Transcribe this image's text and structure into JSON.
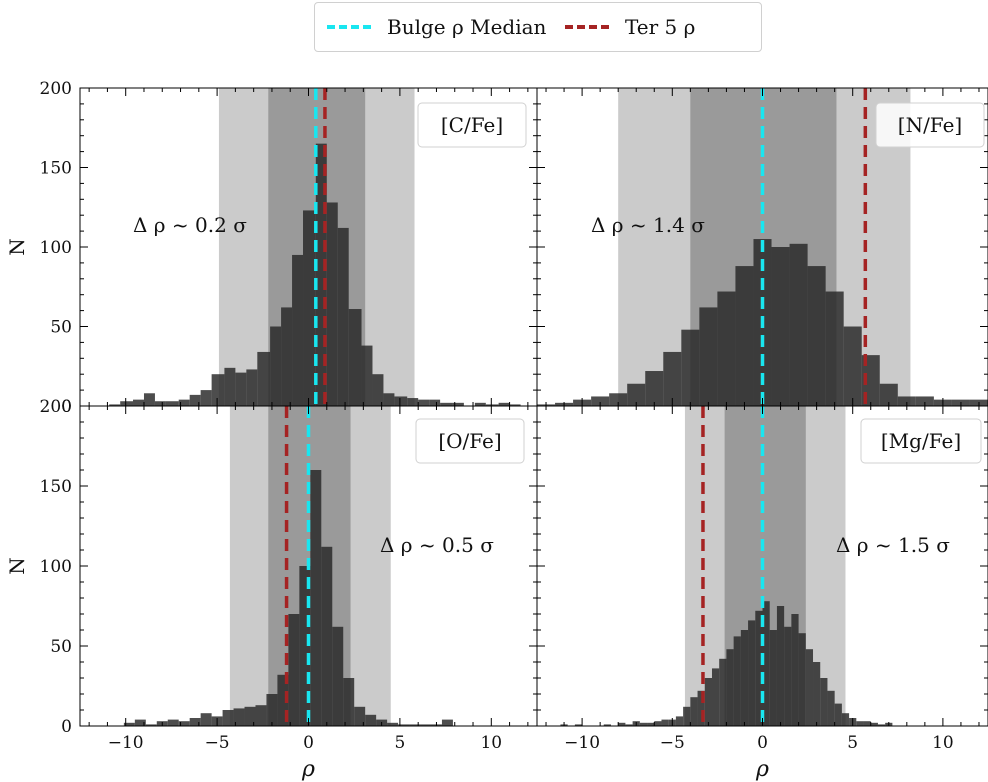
{
  "legend": {
    "items": [
      {
        "label": "Bulge ρ Median",
        "color": "#19e6f0"
      },
      {
        "label": "Ter 5 ρ",
        "color": "#a52323"
      }
    ]
  },
  "chart_data": [
    {
      "type": "bar",
      "panel_label": "[C/Fe]",
      "annotation": "Δ ρ ~ 0.2 σ",
      "ylabel": "N",
      "xlabel": "",
      "xlim": [
        -12.5,
        12.5
      ],
      "ylim": [
        0,
        200
      ],
      "xticks": [
        -10,
        -5,
        0,
        5,
        10
      ],
      "yticks": [
        0,
        50,
        100,
        150,
        200
      ],
      "bulge_median": 0.4,
      "ter5": 0.9,
      "bands": [
        {
          "range": [
            -4.9,
            5.8
          ],
          "shade": "outer"
        },
        {
          "range": [
            -2.2,
            3.1
          ],
          "shade": "inner"
        }
      ],
      "bin_edges": [
        -10.9,
        -10.3,
        -9.6,
        -9.0,
        -8.4,
        -7.8,
        -7.1,
        -6.5,
        -5.9,
        -5.3,
        -4.6,
        -4.0,
        -3.4,
        -2.8,
        -2.1,
        -1.5,
        -0.9,
        -0.3,
        0.4,
        1.0,
        1.6,
        2.2,
        2.9,
        3.5,
        4.1,
        4.7,
        5.4,
        6.0,
        6.6,
        7.2,
        7.9,
        8.5,
        9.1,
        9.7,
        10.4,
        11.0,
        11.6
      ],
      "counts": [
        1,
        3,
        4,
        8,
        3,
        3,
        4,
        7,
        10,
        20,
        24,
        21,
        23,
        34,
        50,
        62,
        95,
        123,
        165,
        128,
        112,
        61,
        38,
        20,
        8,
        6,
        5,
        4,
        4,
        2,
        2,
        0,
        2,
        1,
        2,
        1
      ]
    },
    {
      "type": "bar",
      "panel_label": "[N/Fe]",
      "annotation": "Δ ρ ~ 1.4 σ",
      "ylabel": "",
      "xlabel": "",
      "xlim": [
        -12.5,
        12.5
      ],
      "ylim": [
        0,
        200
      ],
      "xticks": [
        -10,
        -5,
        0,
        5,
        10
      ],
      "yticks": [
        0,
        50,
        100,
        150,
        200
      ],
      "bulge_median": 0.0,
      "ter5": 5.7,
      "bands": [
        {
          "range": [
            -8.0,
            8.2
          ],
          "shade": "outer"
        },
        {
          "range": [
            -4.0,
            4.1
          ],
          "shade": "inner"
        }
      ],
      "bin_edges": [
        -12.5,
        -11.5,
        -10.5,
        -9.5,
        -8.5,
        -7.5,
        -6.5,
        -5.5,
        -4.5,
        -3.5,
        -2.5,
        -1.5,
        -0.5,
        0.5,
        1.5,
        2.5,
        3.5,
        4.5,
        5.5,
        6.5,
        7.5,
        8.5,
        9.5,
        10.5,
        11.5,
        12.5
      ],
      "counts": [
        1,
        2,
        4,
        6,
        8,
        14,
        22,
        34,
        48,
        62,
        72,
        88,
        105,
        100,
        102,
        88,
        72,
        50,
        32,
        14,
        6,
        6,
        4,
        4,
        4
      ]
    },
    {
      "type": "bar",
      "panel_label": "[O/Fe]",
      "annotation": "Δ ρ ~ 0.5 σ",
      "ylabel": "N",
      "xlabel": "ρ",
      "xlim": [
        -12.5,
        12.5
      ],
      "ylim": [
        0,
        200
      ],
      "xticks": [
        -10,
        -5,
        0,
        5,
        10
      ],
      "yticks": [
        0,
        50,
        100,
        150,
        200
      ],
      "bulge_median": 0.0,
      "ter5": -1.2,
      "bands": [
        {
          "range": [
            -4.3,
            4.5
          ],
          "shade": "outer"
        },
        {
          "range": [
            -2.2,
            2.3
          ],
          "shade": "inner"
        }
      ],
      "bin_edges": [
        -10.1,
        -9.5,
        -8.9,
        -8.3,
        -7.7,
        -7.1,
        -6.5,
        -5.9,
        -5.3,
        -4.7,
        -4.1,
        -3.5,
        -2.9,
        -2.3,
        -1.7,
        -1.1,
        -0.5,
        0.1,
        0.7,
        1.3,
        1.9,
        2.5,
        3.1,
        3.7,
        4.3,
        4.9,
        5.5,
        6.1,
        6.7,
        7.3,
        7.9,
        8.5,
        9.1,
        9.7
      ],
      "counts": [
        2,
        4,
        1,
        3,
        4,
        3,
        5,
        8,
        6,
        10,
        11,
        12,
        13,
        20,
        32,
        70,
        100,
        160,
        112,
        62,
        30,
        12,
        7,
        4,
        2,
        1,
        1,
        1,
        1,
        4,
        0,
        0,
        0
      ]
    },
    {
      "type": "bar",
      "panel_label": "[Mg/Fe]",
      "annotation": "Δ ρ ~ 1.5 σ",
      "ylabel": "",
      "xlabel": "ρ",
      "xlim": [
        -12.5,
        12.5
      ],
      "ylim": [
        0,
        200
      ],
      "xticks": [
        -10,
        -5,
        0,
        5,
        10
      ],
      "yticks": [
        0,
        50,
        100,
        150,
        200
      ],
      "bulge_median": 0.0,
      "ter5": -3.3,
      "bands": [
        {
          "range": [
            -4.3,
            4.6
          ],
          "shade": "outer"
        },
        {
          "range": [
            -2.1,
            2.4
          ],
          "shade": "inner"
        }
      ],
      "bin_edges": [
        -11.2,
        -10.8,
        -10.4,
        -10.0,
        -9.6,
        -9.2,
        -8.8,
        -8.4,
        -8.0,
        -7.6,
        -7.2,
        -6.8,
        -6.4,
        -6.0,
        -5.6,
        -5.2,
        -4.8,
        -4.4,
        -4.0,
        -3.6,
        -3.2,
        -2.8,
        -2.4,
        -2.0,
        -1.6,
        -1.2,
        -0.8,
        -0.4,
        0.0,
        0.4,
        0.8,
        1.2,
        1.6,
        2.0,
        2.4,
        2.8,
        3.2,
        3.6,
        4.0,
        4.4,
        4.8,
        5.2,
        5.6,
        6.0,
        6.4,
        6.8,
        7.2
      ],
      "counts": [
        1,
        0,
        1,
        0,
        0,
        0,
        1,
        0,
        2,
        1,
        3,
        2,
        2,
        3,
        4,
        4,
        6,
        12,
        18,
        22,
        30,
        36,
        42,
        48,
        56,
        60,
        66,
        72,
        78,
        60,
        75,
        62,
        70,
        58,
        48,
        40,
        30,
        22,
        14,
        8,
        5,
        3,
        3,
        2,
        1,
        2
      ]
    }
  ]
}
